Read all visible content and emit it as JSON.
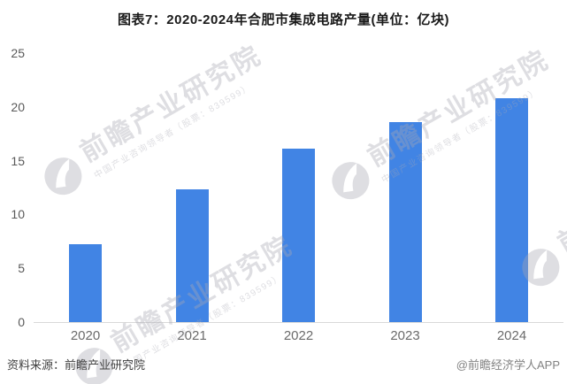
{
  "title": "图表7：2020-2024年合肥市集成电路产量(单位：亿块)",
  "footer": {
    "source": "资料来源：前瞻产业研究院",
    "credit": "@前瞻经济学人APP"
  },
  "watermark": {
    "brand": "前瞻产业研究院",
    "tagline": "中国产业咨询领导者（股票：839599）"
  },
  "colors": {
    "bar": "#4184e4",
    "axis_line": "#d9d9d9",
    "tick_label": "#595959",
    "title_text": "#1a1a1a"
  },
  "chart_data": {
    "type": "bar",
    "categories": [
      "2020",
      "2021",
      "2022",
      "2023",
      "2024"
    ],
    "values": [
      7.2,
      12.3,
      16.1,
      18.6,
      20.8
    ],
    "title": "图表7：2020-2024年合肥市集成电路产量(单位：亿块)",
    "xlabel": "",
    "ylabel": "",
    "ylim": [
      0,
      25
    ],
    "yticks": [
      0,
      5,
      10,
      15,
      20,
      25
    ],
    "grid": false,
    "legend": null
  }
}
